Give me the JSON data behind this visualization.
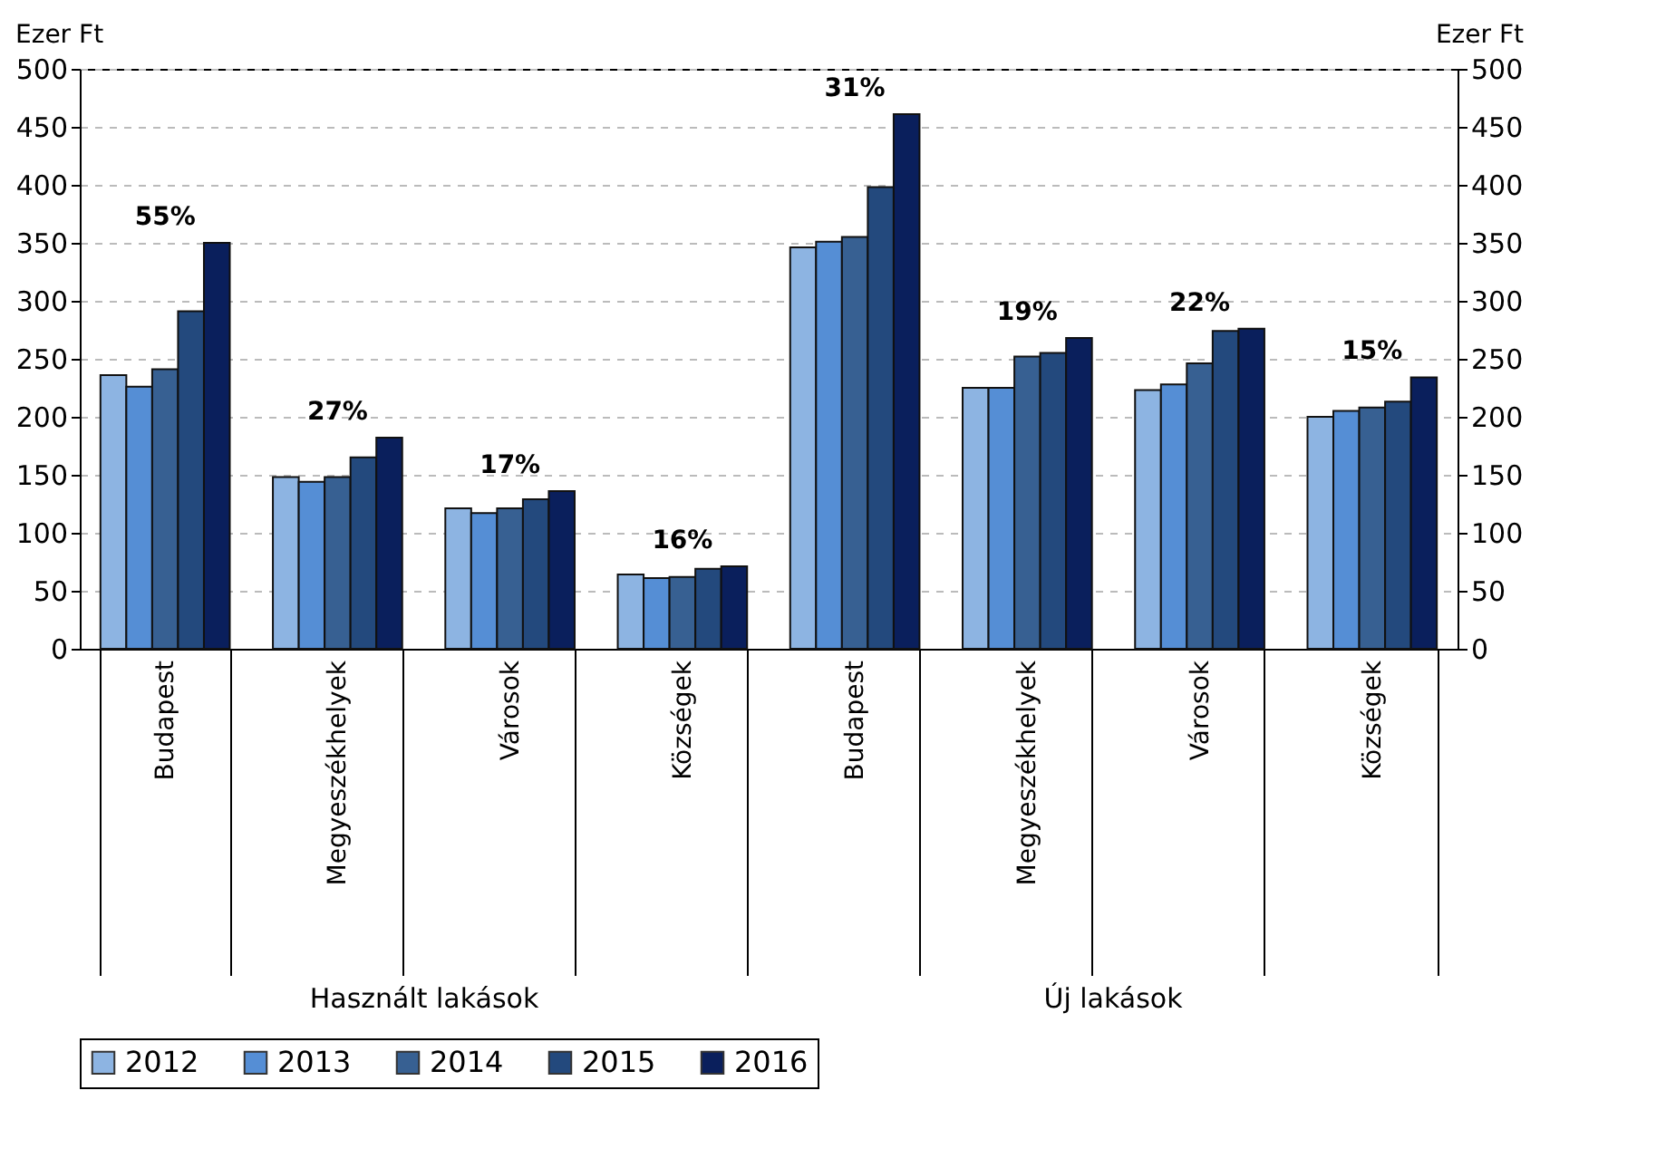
{
  "chart_data": {
    "type": "bar",
    "ylabel": "Ezer Ft",
    "y2label": "Ezer Ft",
    "categories": [
      "Budapest",
      "Megyeszékhelyek",
      "Városok",
      "Községek",
      "Budapest",
      "Megyeszékhelyek",
      "Városok",
      "Községek"
    ],
    "series": [
      {
        "name": "2012",
        "color": "#8db4e2",
        "values": [
          236,
          148,
          121,
          64,
          346,
          225,
          223,
          200
        ]
      },
      {
        "name": "2013",
        "color": "#558ed5",
        "values": [
          226,
          144,
          117,
          61,
          351,
          225,
          228,
          205
        ]
      },
      {
        "name": "2014",
        "color": "#376092",
        "values": [
          241,
          148,
          121,
          62,
          355,
          252,
          246,
          208
        ]
      },
      {
        "name": "2015",
        "color": "#23497d",
        "values": [
          291,
          165,
          129,
          69,
          398,
          255,
          274,
          213
        ]
      },
      {
        "name": "2016",
        "color": "#0a1f5c",
        "values": [
          350,
          182,
          136,
          71,
          461,
          268,
          276,
          234
        ]
      }
    ],
    "ylim": [
      0,
      500
    ],
    "yticks": [
      0,
      50,
      100,
      150,
      200,
      250,
      300,
      350,
      400,
      450,
      500
    ],
    "y2lim": [
      0,
      500
    ],
    "y2ticks": [
      0,
      50,
      100,
      150,
      200,
      250,
      300,
      350,
      400,
      450,
      500
    ],
    "grid": "y",
    "legend": "bottom",
    "annotations": [
      "55%",
      "27%",
      "17%",
      "16%",
      "31%",
      "19%",
      "22%",
      "15%",
      "Használt lakások",
      "Új lakások"
    ]
  }
}
